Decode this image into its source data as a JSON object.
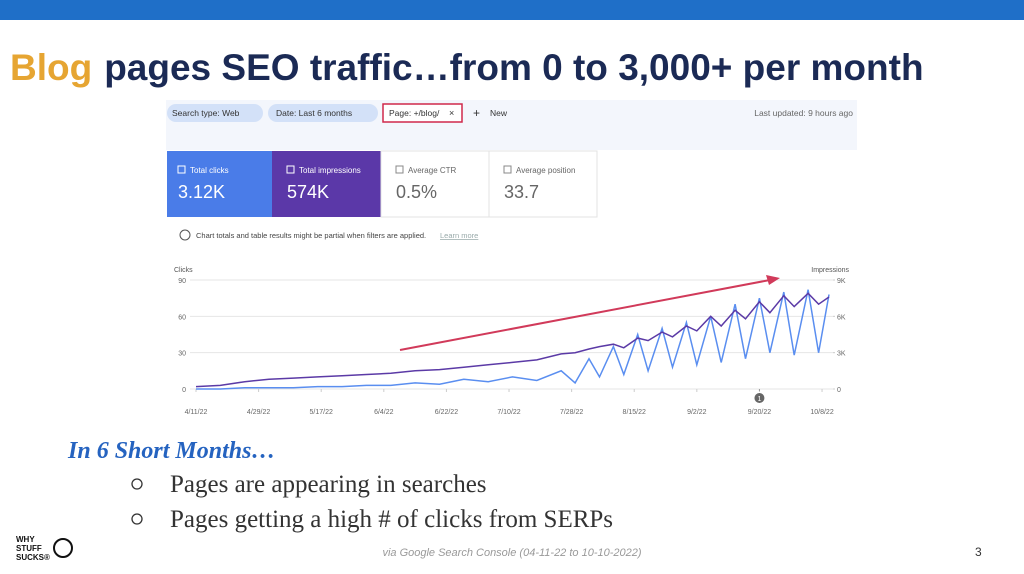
{
  "header": {
    "title_highlight": "Blog",
    "title_rest": "pages SEO traffic…from 0 to 3,000+ per month"
  },
  "filters": [
    "Search type: Web",
    "Date: Last 6 months",
    "Page: +/blog/"
  ],
  "new_button": "New",
  "last_updated": "Last updated: 9 hours ago",
  "metrics": [
    {
      "label": "Total clicks",
      "value": "3.12K"
    },
    {
      "label": "Total impressions",
      "value": "574K"
    },
    {
      "label": "Average CTR",
      "value": "0.5%"
    },
    {
      "label": "Average position",
      "value": "33.7"
    }
  ],
  "notice": "Chart totals and table results might be partial when filters are applied.",
  "notice_link": "Learn more",
  "chart_data": {
    "type": "line",
    "ylabel": "Clicks",
    "y2label": "Impressions",
    "x": [
      "4/11/22",
      "4/18/22",
      "4/25/22",
      "5/2/22",
      "5/9/22",
      "5/16/22",
      "5/23/22",
      "5/30/22",
      "6/6/22",
      "6/13/22",
      "6/20/22",
      "6/27/22",
      "7/4/22",
      "7/11/22",
      "7/18/22",
      "7/25/22",
      "7/29/22",
      "8/2/22",
      "8/5/22",
      "8/9/22",
      "8/12/22",
      "8/16/22",
      "8/19/22",
      "8/23/22",
      "8/26/22",
      "8/30/22",
      "9/2/22",
      "9/6/22",
      "9/9/22",
      "9/13/22",
      "9/16/22",
      "9/20/22",
      "9/23/22",
      "9/27/22",
      "9/30/22",
      "10/4/22",
      "10/7/22",
      "10/10/22"
    ],
    "xlim": [
      "4/11/22",
      "10/10/22"
    ],
    "xticks": [
      "4/11/22",
      "4/29/22",
      "5/17/22",
      "6/4/22",
      "6/22/22",
      "7/10/22",
      "7/28/22",
      "8/15/22",
      "9/2/22",
      "9/20/22",
      "10/8/22"
    ],
    "ylim": [
      0,
      90
    ],
    "yticks": [
      0,
      30,
      60,
      90
    ],
    "y2lim": [
      0,
      9000
    ],
    "y2ticks": [
      0,
      {
        "value": 3000,
        "label": "3K"
      },
      {
        "value": 6000,
        "label": "6K"
      },
      {
        "value": 9000,
        "label": "9K"
      }
    ],
    "series": [
      {
        "name": "Clicks",
        "color": "#5a8ef0",
        "values": [
          0,
          0,
          1,
          1,
          1,
          2,
          2,
          3,
          3,
          5,
          4,
          8,
          6,
          10,
          7,
          15,
          5,
          25,
          10,
          35,
          12,
          45,
          15,
          50,
          18,
          55,
          20,
          60,
          22,
          70,
          25,
          75,
          30,
          80,
          28,
          82,
          30,
          78
        ]
      },
      {
        "name": "Impressions",
        "color": "#5b3aa6",
        "axis": "y2",
        "values": [
          200,
          300,
          600,
          800,
          900,
          1000,
          1100,
          1200,
          1300,
          1500,
          1600,
          1800,
          2000,
          2200,
          2400,
          2900,
          3000,
          3300,
          3500,
          3700,
          3400,
          4200,
          4000,
          4700,
          4300,
          5200,
          4800,
          6000,
          5200,
          6500,
          5800,
          7200,
          6300,
          7700,
          6800,
          7900,
          7000,
          7600
        ]
      }
    ],
    "annotation": {
      "text": "1",
      "x": "9/20/22"
    }
  },
  "body": {
    "subheading": "In 6 Short Months…",
    "bullets": [
      "Pages are appearing in searches",
      "Pages getting a high # of clicks from SERPs"
    ]
  },
  "footer": {
    "source": "via Google Search Console (04-11-22 to  10-10-2022)",
    "page_number": "3",
    "logo": [
      "WHY",
      "STUFF",
      "SUCKS®"
    ]
  }
}
